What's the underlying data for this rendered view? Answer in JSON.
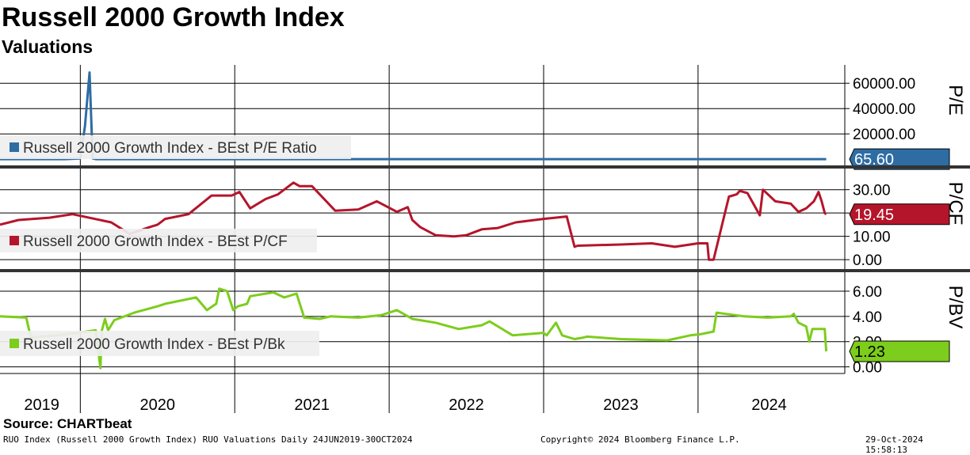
{
  "header": {
    "title": "Russell 2000 Growth Index",
    "subtitle": "Valuations"
  },
  "footer": {
    "source": "Source:  CHARTbeat",
    "description": "RUO Index (Russell 2000 Growth Index) RUO Valuations  Daily 24JUN2019-30OCT2024",
    "copyright": "Copyright© 2024 Bloomberg Finance L.P.",
    "timestamp": "29-Oct-2024 15:58:13"
  },
  "colors": {
    "pe": "#2e6da4",
    "pcf": "#b5152b",
    "pbv": "#7ccd1c"
  },
  "chart_data": [
    {
      "type": "line",
      "panel": "pe",
      "axis_label": "P/E",
      "legend": "Russell 2000 Growth Index - BEst P/E Ratio",
      "last_value_label": "65.60",
      "last_value": 65.6,
      "ylim": [
        -3000,
        72000
      ],
      "yticks": [
        20000,
        40000,
        60000
      ],
      "ytick_labels": [
        "20000.00",
        "40000.00",
        "60000.00"
      ],
      "series": {
        "x": [
          2019.48,
          2019.9,
          2020.0,
          2020.03,
          2020.06,
          2020.08,
          2020.1,
          2024.32,
          2024.83
        ],
        "y": [
          70,
          80,
          600,
          26000,
          68500,
          600,
          70,
          65,
          65.6
        ]
      }
    },
    {
      "type": "line",
      "panel": "pcf",
      "axis_label": "P/CF",
      "legend": "Russell 2000 Growth Index - BEst P/CF",
      "last_value_label": "19.45",
      "last_value": 19.45,
      "ylim": [
        -3,
        36
      ],
      "yticks": [
        0,
        10,
        20,
        30
      ],
      "ytick_labels": [
        "0.00",
        "10.00",
        "",
        "30.00"
      ],
      "series": {
        "x": [
          2019.48,
          2019.6,
          2019.8,
          2019.95,
          2020.2,
          2020.32,
          2020.45,
          2020.5,
          2020.55,
          2020.7,
          2020.85,
          2020.98,
          2021.03,
          2021.1,
          2021.2,
          2021.28,
          2021.38,
          2021.42,
          2021.5,
          2021.65,
          2021.8,
          2021.92,
          2022.05,
          2022.12,
          2022.15,
          2022.2,
          2022.3,
          2022.42,
          2022.5,
          2022.6,
          2022.7,
          2022.82,
          2023.0,
          2023.15,
          2023.2,
          2023.22,
          2023.5,
          2023.7,
          2023.85,
          2024.0,
          2024.06,
          2024.07,
          2024.1,
          2024.2,
          2024.25,
          2024.27,
          2024.32,
          2024.4,
          2024.42,
          2024.5,
          2024.6,
          2024.65,
          2024.7,
          2024.75,
          2024.78,
          2024.8,
          2024.82,
          2024.83
        ],
        "y": [
          15,
          17,
          18,
          19.5,
          16,
          11,
          14,
          15,
          17.5,
          19.5,
          27.5,
          27.5,
          29,
          22,
          26,
          28,
          33,
          31.5,
          31.5,
          21,
          21.5,
          25,
          20.5,
          22.5,
          17,
          14,
          10.5,
          10,
          10.5,
          13,
          13.5,
          16,
          17.5,
          18.5,
          5.5,
          6,
          6.5,
          7,
          5.5,
          7,
          7,
          0,
          0,
          27,
          28,
          29.5,
          28.5,
          19,
          30,
          25,
          24,
          20.5,
          22,
          25,
          29,
          25,
          20,
          19.45
        ]
      }
    },
    {
      "type": "line",
      "panel": "pbv",
      "axis_label": "P/BV",
      "legend": "Russell 2000 Growth Index - BEst P/Bk",
      "last_value_label": "1.23",
      "last_value": 1.23,
      "ylim": [
        -0.4,
        7.0
      ],
      "yticks": [
        0,
        2,
        4,
        6
      ],
      "ytick_labels": [
        "0.00",
        "2.00",
        "4.00",
        "6.00"
      ],
      "series": {
        "x": [
          2019.48,
          2019.65,
          2019.68,
          2019.75,
          2019.85,
          2019.98,
          2020.1,
          2020.13,
          2020.14,
          2020.16,
          2020.18,
          2020.22,
          2020.35,
          2020.5,
          2020.55,
          2020.75,
          2020.82,
          2020.88,
          2020.9,
          2020.95,
          2020.99,
          2021.02,
          2021.08,
          2021.1,
          2021.25,
          2021.32,
          2021.4,
          2021.45,
          2021.55,
          2021.62,
          2021.8,
          2021.95,
          2022.05,
          2022.15,
          2022.3,
          2022.45,
          2022.6,
          2022.65,
          2022.8,
          2023.0,
          2023.02,
          2023.08,
          2023.12,
          2023.2,
          2023.25,
          2023.28,
          2023.5,
          2023.8,
          2023.95,
          2024.02,
          2024.1,
          2024.12,
          2024.3,
          2024.45,
          2024.6,
          2024.62,
          2024.65,
          2024.7,
          2024.72,
          2024.74,
          2024.78,
          2024.82,
          2024.83
        ],
        "y": [
          4.0,
          3.9,
          2.3,
          2.4,
          2.5,
          2.7,
          2.9,
          -0.1,
          2.9,
          3.8,
          2.9,
          3.7,
          4.3,
          4.8,
          5.0,
          5.5,
          4.5,
          5.0,
          6.2,
          6.0,
          4.5,
          4.8,
          5.0,
          5.6,
          5.9,
          5.5,
          5.8,
          3.9,
          3.8,
          4.0,
          3.9,
          4.1,
          4.5,
          3.8,
          3.5,
          3.0,
          3.3,
          3.6,
          2.5,
          2.7,
          2.5,
          3.5,
          2.5,
          2.2,
          2.3,
          2.4,
          2.2,
          2.1,
          2.5,
          2.6,
          2.8,
          4.3,
          4.0,
          3.9,
          4.0,
          4.2,
          3.5,
          3.2,
          2.0,
          3.0,
          3.0,
          3.0,
          1.23
        ]
      }
    }
  ],
  "x_axis": {
    "year_labels": [
      "2019",
      "2020",
      "2021",
      "2022",
      "2023",
      "2024"
    ],
    "year_centers": [
      2019.75,
      2020.5,
      2021.5,
      2022.5,
      2023.5,
      2024.46
    ],
    "year_starts": [
      2020.0,
      2021.0,
      2022.0,
      2023.0,
      2024.0
    ],
    "range": [
      2019.48,
      2024.95
    ]
  }
}
